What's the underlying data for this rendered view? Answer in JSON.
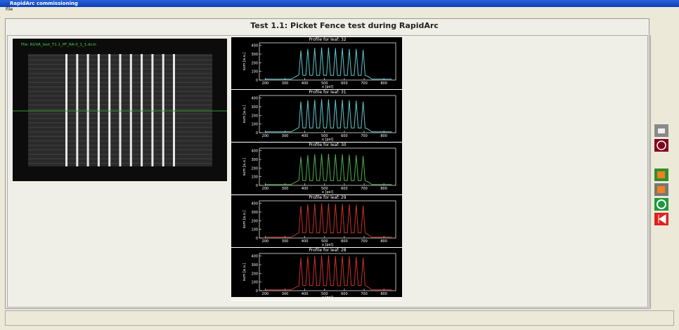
{
  "window": {
    "title": "RapidArc commissioning",
    "menu": [
      "File"
    ]
  },
  "heading": "Test 1.1: Picket Fence test during RapidArc",
  "image": {
    "file_label": "File: RUVA_test_T1.1_PF_RA-0_1_1.dcm"
  },
  "axes": {
    "xlabel": "x [pxl]",
    "ylabel": "sum [a.u.]",
    "xlim": [
      170,
      860
    ],
    "ylim": [
      0,
      430
    ],
    "xticks": [
      200,
      300,
      400,
      500,
      600,
      700,
      800
    ],
    "yticks": [
      0,
      100,
      200,
      300,
      400
    ]
  },
  "profile_x": [
    200,
    330,
    355,
    370,
    380,
    390,
    405,
    415,
    425,
    440,
    450,
    460,
    475,
    485,
    495,
    510,
    520,
    530,
    545,
    555,
    565,
    580,
    590,
    600,
    615,
    625,
    635,
    650,
    660,
    670,
    685,
    695,
    705,
    720,
    740,
    800,
    840
  ],
  "profiles": [
    {
      "title": "Profile for leaf: 32",
      "color": "#5ec8cc",
      "values": [
        10,
        10,
        40,
        60,
        340,
        55,
        55,
        360,
        55,
        55,
        370,
        55,
        55,
        375,
        55,
        55,
        375,
        55,
        55,
        370,
        55,
        55,
        370,
        55,
        55,
        360,
        55,
        55,
        360,
        55,
        55,
        350,
        55,
        40,
        10,
        10,
        10
      ]
    },
    {
      "title": "Profile for leaf: 31",
      "color": "#5ec8cc",
      "values": [
        10,
        10,
        40,
        60,
        360,
        55,
        55,
        375,
        55,
        55,
        380,
        55,
        55,
        385,
        55,
        55,
        385,
        55,
        55,
        380,
        55,
        55,
        380,
        55,
        55,
        375,
        55,
        55,
        370,
        55,
        55,
        360,
        55,
        40,
        10,
        10,
        10
      ]
    },
    {
      "title": "Profile for leaf: 30",
      "color": "#4cb04c",
      "values": [
        10,
        10,
        40,
        60,
        330,
        55,
        55,
        350,
        55,
        55,
        360,
        55,
        55,
        365,
        55,
        55,
        365,
        55,
        55,
        360,
        55,
        55,
        360,
        55,
        55,
        355,
        55,
        55,
        350,
        55,
        55,
        340,
        55,
        40,
        10,
        10,
        10
      ]
    },
    {
      "title": "Profile for leaf: 29",
      "color": "#c8302a",
      "values": [
        10,
        10,
        40,
        60,
        370,
        60,
        60,
        390,
        60,
        60,
        395,
        60,
        60,
        400,
        60,
        60,
        400,
        60,
        60,
        395,
        60,
        60,
        395,
        60,
        60,
        390,
        60,
        60,
        385,
        60,
        60,
        375,
        60,
        40,
        10,
        10,
        10
      ]
    },
    {
      "title": "Profile for leaf: 28",
      "color": "#c8302a",
      "values": [
        10,
        10,
        40,
        60,
        380,
        60,
        60,
        395,
        60,
        60,
        400,
        60,
        60,
        405,
        60,
        60,
        405,
        60,
        60,
        400,
        60,
        60,
        400,
        60,
        60,
        395,
        60,
        60,
        390,
        60,
        60,
        380,
        60,
        40,
        10,
        10,
        10
      ]
    }
  ]
}
